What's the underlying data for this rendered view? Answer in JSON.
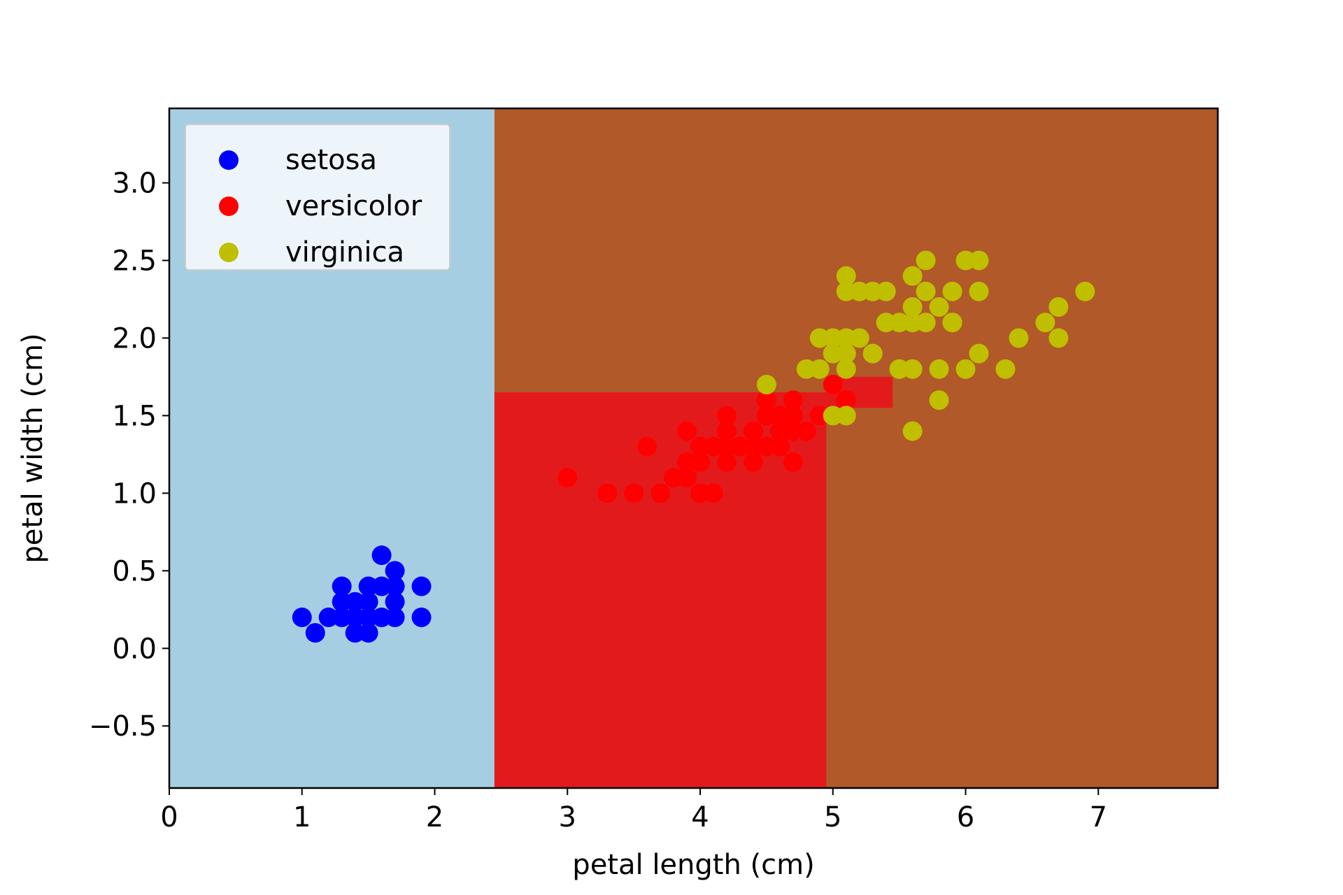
{
  "chart_data": {
    "type": "scatter",
    "title": "",
    "xlabel": "petal length (cm)",
    "ylabel": "petal width (cm)",
    "xlim": [
      0,
      7.9
    ],
    "ylim": [
      -0.9,
      3.48
    ],
    "xticks": [
      0,
      1,
      2,
      3,
      4,
      5,
      6,
      7
    ],
    "xtick_labels": [
      "0",
      "1",
      "2",
      "3",
      "4",
      "5",
      "6",
      "7"
    ],
    "yticks": [
      -0.5,
      0.0,
      0.5,
      1.0,
      1.5,
      2.0,
      2.5,
      3.0
    ],
    "ytick_labels": [
      "−0.5",
      "0.0",
      "0.5",
      "1.0",
      "1.5",
      "2.0",
      "2.5",
      "3.0"
    ],
    "grid": false,
    "legend_position": "top-left",
    "decision_regions": [
      {
        "class": "setosa",
        "color": "#a6cee3",
        "x_range": [
          0,
          2.45
        ],
        "y_range": [
          -0.9,
          3.48
        ]
      },
      {
        "class": "virginica",
        "color": "#b15928",
        "x_range": [
          2.45,
          7.9
        ],
        "y_range": [
          -0.9,
          3.48
        ]
      },
      {
        "class": "versicolor",
        "color": "#e31a1c",
        "x_range": [
          2.45,
          4.95
        ],
        "y_range": [
          -0.9,
          1.65
        ]
      },
      {
        "class": "versicolor",
        "color": "#e31a1c",
        "x_range": [
          4.95,
          5.45
        ],
        "y_range": [
          1.55,
          1.75
        ]
      }
    ],
    "series": [
      {
        "name": "setosa",
        "color": "#0000ff",
        "points": [
          [
            1.4,
            0.2
          ],
          [
            1.3,
            0.2
          ],
          [
            1.5,
            0.2
          ],
          [
            1.7,
            0.4
          ],
          [
            1.4,
            0.3
          ],
          [
            1.5,
            0.1
          ],
          [
            1.6,
            0.2
          ],
          [
            1.1,
            0.1
          ],
          [
            1.2,
            0.2
          ],
          [
            1.5,
            0.4
          ],
          [
            1.3,
            0.4
          ],
          [
            1.7,
            0.3
          ],
          [
            1.0,
            0.2
          ],
          [
            1.7,
            0.5
          ],
          [
            1.9,
            0.2
          ],
          [
            1.6,
            0.4
          ],
          [
            1.9,
            0.4
          ],
          [
            1.6,
            0.6
          ],
          [
            1.4,
            0.1
          ],
          [
            1.3,
            0.3
          ],
          [
            1.5,
            0.3
          ],
          [
            1.7,
            0.2
          ]
        ]
      },
      {
        "name": "versicolor",
        "color": "#ff0000",
        "points": [
          [
            4.7,
            1.4
          ],
          [
            4.5,
            1.5
          ],
          [
            4.9,
            1.5
          ],
          [
            4.0,
            1.3
          ],
          [
            4.6,
            1.5
          ],
          [
            3.3,
            1.0
          ],
          [
            4.6,
            1.3
          ],
          [
            3.9,
            1.4
          ],
          [
            3.5,
            1.0
          ],
          [
            4.2,
            1.5
          ],
          [
            4.0,
            1.0
          ],
          [
            4.7,
            1.4
          ],
          [
            3.6,
            1.3
          ],
          [
            4.4,
            1.4
          ],
          [
            4.1,
            1.0
          ],
          [
            4.5,
            1.5
          ],
          [
            3.9,
            1.1
          ],
          [
            4.8,
            1.8
          ],
          [
            4.0,
            1.3
          ],
          [
            4.9,
            1.5
          ],
          [
            4.7,
            1.2
          ],
          [
            4.3,
            1.3
          ],
          [
            4.4,
            1.4
          ],
          [
            5.0,
            1.7
          ],
          [
            4.5,
            1.5
          ],
          [
            3.8,
            1.1
          ],
          [
            3.7,
            1.0
          ],
          [
            3.9,
            1.2
          ],
          [
            5.1,
            1.6
          ],
          [
            4.5,
            1.6
          ],
          [
            4.7,
            1.5
          ],
          [
            4.4,
            1.3
          ],
          [
            4.1,
            1.3
          ],
          [
            4.0,
            1.3
          ],
          [
            4.4,
            1.2
          ],
          [
            4.6,
            1.4
          ],
          [
            4.0,
            1.2
          ],
          [
            3.0,
            1.1
          ],
          [
            4.2,
            1.3
          ],
          [
            4.2,
            1.2
          ],
          [
            4.3,
            1.3
          ],
          [
            4.1,
            1.3
          ],
          [
            4.5,
            1.3
          ],
          [
            4.6,
            1.5
          ],
          [
            4.7,
            1.6
          ],
          [
            4.2,
            1.4
          ],
          [
            4.8,
            1.4
          ]
        ]
      },
      {
        "name": "virginica",
        "color": "#bfbf00",
        "points": [
          [
            6.0,
            2.5
          ],
          [
            5.1,
            1.9
          ],
          [
            5.9,
            2.1
          ],
          [
            5.6,
            1.8
          ],
          [
            5.8,
            2.2
          ],
          [
            6.6,
            2.1
          ],
          [
            4.5,
            1.7
          ],
          [
            6.3,
            1.8
          ],
          [
            5.8,
            1.8
          ],
          [
            6.1,
            2.5
          ],
          [
            5.1,
            2.0
          ],
          [
            5.3,
            1.9
          ],
          [
            5.5,
            2.1
          ],
          [
            5.0,
            2.0
          ],
          [
            5.1,
            2.4
          ],
          [
            5.5,
            1.8
          ],
          [
            6.7,
            2.2
          ],
          [
            6.9,
            2.3
          ],
          [
            5.0,
            1.5
          ],
          [
            5.7,
            2.3
          ],
          [
            4.9,
            2.0
          ],
          [
            6.7,
            2.0
          ],
          [
            4.9,
            1.8
          ],
          [
            5.7,
            2.1
          ],
          [
            6.0,
            1.8
          ],
          [
            4.8,
            1.8
          ],
          [
            5.6,
            2.1
          ],
          [
            5.8,
            1.6
          ],
          [
            6.1,
            1.9
          ],
          [
            6.4,
            2.0
          ],
          [
            5.6,
            2.2
          ],
          [
            5.1,
            1.5
          ],
          [
            5.6,
            1.4
          ],
          [
            6.1,
            2.3
          ],
          [
            5.6,
            2.4
          ],
          [
            5.5,
            1.8
          ],
          [
            5.4,
            2.1
          ],
          [
            5.6,
            2.4
          ],
          [
            5.1,
            2.3
          ],
          [
            5.9,
            2.3
          ],
          [
            5.7,
            2.5
          ],
          [
            5.2,
            2.3
          ],
          [
            5.4,
            2.3
          ],
          [
            5.3,
            2.3
          ],
          [
            5.2,
            2.0
          ],
          [
            5.9,
            2.1
          ],
          [
            5.1,
            1.8
          ],
          [
            5.0,
            1.9
          ]
        ]
      }
    ]
  }
}
